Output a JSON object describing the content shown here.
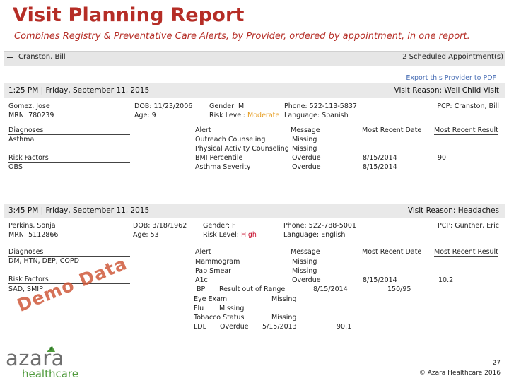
{
  "report": {
    "title": "Visit Planning Report",
    "subtitle": "Combines Registry & Preventative Care Alerts, by Provider, ordered by appointment, in one report."
  },
  "provider_bar": {
    "provider_name": "Cranston, Bill",
    "appointments_label": "2 Scheduled Appointment(s)",
    "export_label": "Export this Provider to PDF"
  },
  "visits": [
    {
      "time": "1:25 PM | Friday, September 11, 2015",
      "reason_label": "Visit Reason:",
      "reason": "Well Child Visit",
      "patient_name": "Gomez, Jose",
      "mrn": "MRN: 780239",
      "dob": "DOB: 11/23/2006",
      "age": "Age: 9",
      "gender": "Gender: M",
      "risk_label": "Risk Level:",
      "risk_level": "Moderate",
      "phone": "Phone: 522-113-5837",
      "language": "Language: Spanish",
      "pcp": "PCP: Cranston, Bill",
      "diagnoses_header": "Diagnoses",
      "diagnoses": "Asthma",
      "risk_factors_header": "Risk Factors",
      "risk_factors": "OBS",
      "alert_header": "Alert",
      "message_header": "Message",
      "recent_date_header": "Most Recent Date",
      "recent_result_header": "Most Recent Result",
      "alerts": [
        "Outreach Counseling",
        "Physical Activity Counseling",
        "BMI Percentile",
        "Asthma Severity"
      ],
      "messages": [
        "Missing",
        "Missing",
        "Overdue",
        "Overdue"
      ],
      "dates": [
        "",
        "",
        "8/15/2014",
        "8/15/2014"
      ],
      "results": [
        "",
        "",
        "90",
        ""
      ]
    },
    {
      "time": "3:45 PM | Friday, September 11, 2015",
      "reason_label": "Visit Reason:",
      "reason": "Headaches",
      "patient_name": "Perkins, Sonja",
      "mrn": "MRN: 5112866",
      "dob": "DOB: 3/18/1962",
      "age": "Age: 53",
      "gender": "Gender: F",
      "risk_label": "Risk Level:",
      "risk_level": "High",
      "phone": "Phone: 522-788-5001",
      "language": "Language: English",
      "pcp": "PCP: Gunther, Eric",
      "diagnoses_header": "Diagnoses",
      "diagnoses": "DM, HTN, DEP, COPD",
      "risk_factors_header": "Risk Factors",
      "risk_factors": "SAD, SMIP",
      "alert_header": "Alert",
      "message_header": "Message",
      "recent_date_header": "Most Recent Date",
      "recent_result_header": "Most Recent Result",
      "alerts": [
        "Mammogram",
        "Pap Smear",
        "A1c"
      ],
      "messages": [
        "Missing",
        "Missing",
        "Overdue"
      ],
      "a1c_date": "8/15/2014",
      "a1c_result": "10.2",
      "bp_line": {
        "alert": "BP",
        "message": "Result out of Range",
        "date": "8/15/2014",
        "result": "150/95"
      },
      "eye_line": {
        "alert": "Eye Exam",
        "message": "Missing"
      },
      "flu_line": {
        "alert": "Flu",
        "message": "Missing"
      },
      "tobacco_line": {
        "alert": "Tobacco Status",
        "message": "Missing"
      },
      "ldl_line": {
        "alert": "LDL",
        "message": "Overdue",
        "date": "5/15/2013",
        "result": "90.1"
      }
    }
  ],
  "watermark": "Demo Data",
  "footer": {
    "logo_word": "azara",
    "logo_sub": "healthcare",
    "page_number": "27",
    "copyright": "© Azara Healthcare 2016"
  },
  "colors": {
    "title_red": "#b52d26",
    "moderate": "#e59a1b",
    "high": "#c8102e",
    "logo_green": "#4f9a3c",
    "logo_gray": "#6e6e6e"
  }
}
